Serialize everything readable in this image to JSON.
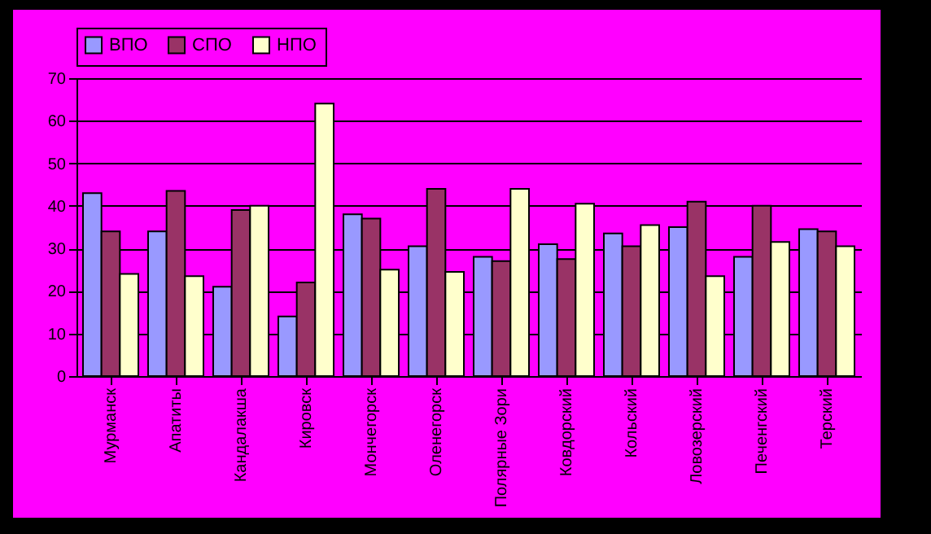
{
  "chart_data": {
    "type": "bar",
    "categories": [
      "Мурманск",
      "Апатиты",
      "Кандалакша",
      "Кировск",
      "Мончегорск",
      "Оленегорск",
      "Полярные Зори",
      "Ковдорский",
      "Кольский",
      "Ловозерский",
      "Печенгский",
      "Терский"
    ],
    "series": [
      {
        "name": "ВПО",
        "color": "#9999ff",
        "values": [
          43,
          34,
          21,
          14,
          38,
          30.5,
          28,
          31,
          33.5,
          35,
          28,
          34.5
        ]
      },
      {
        "name": "СПО",
        "color": "#993366",
        "values": [
          34,
          43.5,
          39,
          22,
          37,
          44,
          27,
          27.5,
          30.5,
          41,
          40,
          34
        ]
      },
      {
        "name": "НПО",
        "color": "#ffffcc",
        "values": [
          24,
          23.5,
          40,
          64,
          25,
          24.5,
          44,
          40.5,
          35.5,
          23.5,
          31.5,
          30.5
        ]
      }
    ],
    "ylim": [
      0,
      70
    ],
    "yticks": [
      0,
      10,
      20,
      30,
      40,
      50,
      60,
      70
    ],
    "grid": "y",
    "legend": "top"
  }
}
